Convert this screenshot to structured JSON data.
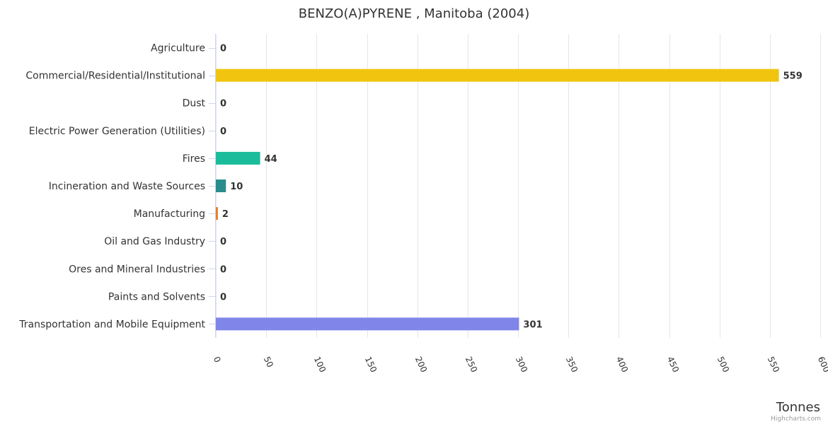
{
  "chart_data": {
    "type": "bar",
    "orientation": "horizontal",
    "title": "BENZO(A)PYRENE , Manitoba (2004)",
    "categories": [
      "Agriculture",
      "Commercial/Residential/Institutional",
      "Dust",
      "Electric Power Generation (Utilities)",
      "Fires",
      "Incineration and Waste Sources",
      "Manufacturing",
      "Oil and Gas Industry",
      "Ores and Mineral Industries",
      "Paints and Solvents",
      "Transportation and Mobile Equipment"
    ],
    "values": [
      0,
      559,
      0,
      0,
      44,
      10,
      2,
      0,
      0,
      0,
      301
    ],
    "value_labels": [
      "0",
      "559",
      "0",
      "0",
      "44",
      "10",
      "2",
      "0",
      "0",
      "0",
      "301"
    ],
    "colors": [
      "#7cb5ec",
      "#f1c40f",
      "#2c3e50",
      "#9b59b6",
      "#1abc9c",
      "#2a8c8c",
      "#e67e22",
      "#7f8c8d",
      "#34495e",
      "#95a5a6",
      "#8085e9"
    ],
    "xlabel": "Tonnes",
    "xlim": [
      0,
      600
    ],
    "xticks": [
      0,
      50,
      100,
      150,
      200,
      250,
      300,
      350,
      400,
      450,
      500,
      550,
      600
    ],
    "grid": true,
    "legend": "none"
  },
  "credits": "Highcharts.com"
}
